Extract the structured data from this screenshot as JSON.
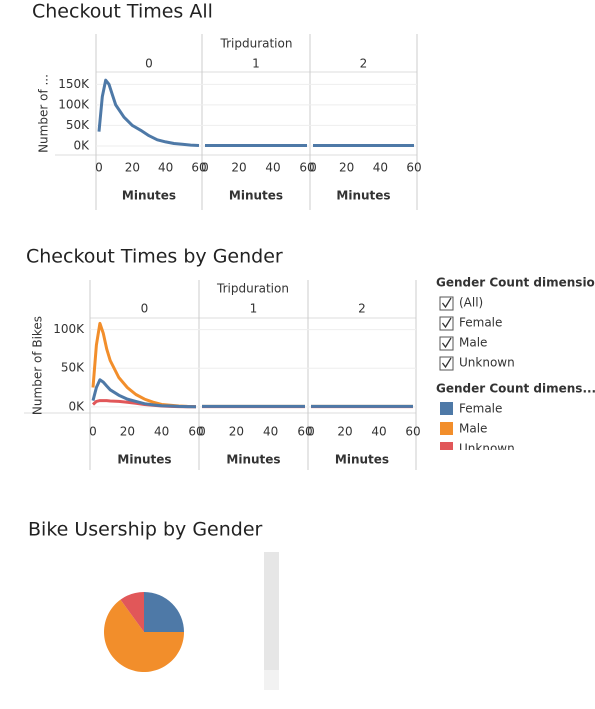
{
  "chart_data": [
    {
      "type": "line",
      "title": "Checkout Times All",
      "facet_label": "Tripduration",
      "panels": [
        "0",
        "1",
        "2"
      ],
      "y_label": "Number of ...",
      "x_label": "Minutes",
      "x": [
        0,
        2,
        4,
        6,
        8,
        10,
        15,
        20,
        25,
        30,
        35,
        40,
        45,
        50,
        55,
        60
      ],
      "xlim": [
        0,
        60
      ],
      "xticks": [
        0,
        20,
        40,
        60
      ],
      "ylim": [
        -22000,
        180000
      ],
      "yticks": [
        {
          "value": 0,
          "label": "0K"
        },
        {
          "value": 50000,
          "label": "50K"
        },
        {
          "value": 100000,
          "label": "100K"
        },
        {
          "value": 150000,
          "label": "150K"
        }
      ],
      "grid": true,
      "series": [
        {
          "color": "#4e79a7",
          "values": [
            [
              35000,
              120000,
              160000,
              150000,
              125000,
              100000,
              70000,
              50000,
              38000,
              25000,
              15000,
              10000,
              6000,
              4000,
              2000,
              1000
            ],
            [
              1000,
              1000,
              1000,
              1000,
              1000,
              1000,
              1000,
              1000,
              1000,
              1000,
              1000,
              1000,
              1000,
              1000,
              1000,
              1000
            ],
            [
              1000,
              1000,
              1000,
              1000,
              1000,
              1000,
              1000,
              1000,
              1000,
              1000,
              1000,
              1000,
              1000,
              1000,
              1000,
              1000
            ]
          ]
        }
      ]
    },
    {
      "type": "line",
      "title": "Checkout Times by Gender",
      "facet_label": "Tripduration",
      "panels": [
        "0",
        "1",
        "2"
      ],
      "y_label": "Number of Bikes",
      "x_label": "Minutes",
      "x": [
        0,
        2,
        4,
        6,
        8,
        10,
        15,
        20,
        25,
        30,
        35,
        40,
        45,
        50,
        55,
        60
      ],
      "xlim": [
        0,
        60
      ],
      "xticks": [
        0,
        20,
        40,
        60
      ],
      "ylim": [
        -8000,
        115000
      ],
      "yticks": [
        {
          "value": 0,
          "label": "0K"
        },
        {
          "value": 50000,
          "label": "50K"
        },
        {
          "value": 100000,
          "label": "100K"
        }
      ],
      "grid": true,
      "filter_title": "Gender Count dimension",
      "filter_items": [
        "(All)",
        "Female",
        "Male",
        "Unknown"
      ],
      "legend_title": "Gender Count dimens...",
      "series": [
        {
          "name": "Female",
          "color": "#4e79a7",
          "values": [
            [
              8000,
              25000,
              35000,
              32000,
              27000,
              22000,
              15000,
              10000,
              7000,
              4000,
              2500,
              1500,
              1000,
              500,
              300,
              200
            ],
            [
              500,
              500,
              500,
              500,
              500,
              500,
              500,
              500,
              500,
              500,
              500,
              500,
              500,
              500,
              500,
              500
            ],
            [
              500,
              500,
              500,
              500,
              500,
              500,
              500,
              500,
              500,
              500,
              500,
              500,
              500,
              500,
              500,
              500
            ]
          ]
        },
        {
          "name": "Male",
          "color": "#f28e2b",
          "values": [
            [
              25000,
              80000,
              108000,
              95000,
              75000,
              60000,
              38000,
              25000,
              16000,
              10000,
              6000,
              3000,
              2000,
              1000,
              500,
              300
            ],
            [
              500,
              500,
              500,
              500,
              500,
              500,
              500,
              500,
              500,
              500,
              500,
              500,
              500,
              500,
              500,
              500
            ],
            [
              500,
              500,
              500,
              500,
              500,
              500,
              500,
              500,
              500,
              500,
              500,
              500,
              500,
              500,
              500,
              500
            ]
          ]
        },
        {
          "name": "Unknown",
          "color": "#e15759",
          "values": [
            [
              3000,
              7000,
              8000,
              8000,
              8000,
              7500,
              7000,
              6000,
              4500,
              3000,
              2000,
              1000,
              500,
              300,
              200,
              100
            ],
            [
              300,
              300,
              300,
              300,
              300,
              300,
              300,
              300,
              300,
              300,
              300,
              300,
              300,
              300,
              300,
              300
            ],
            [
              300,
              300,
              300,
              300,
              300,
              300,
              300,
              300,
              300,
              300,
              300,
              300,
              300,
              300,
              300,
              300
            ]
          ]
        }
      ]
    },
    {
      "type": "pie",
      "title": "Bike Usership by Gender",
      "values": [
        25,
        65,
        10
      ],
      "colors": [
        "#4e79a7",
        "#f28e2b",
        "#e15759"
      ]
    }
  ]
}
